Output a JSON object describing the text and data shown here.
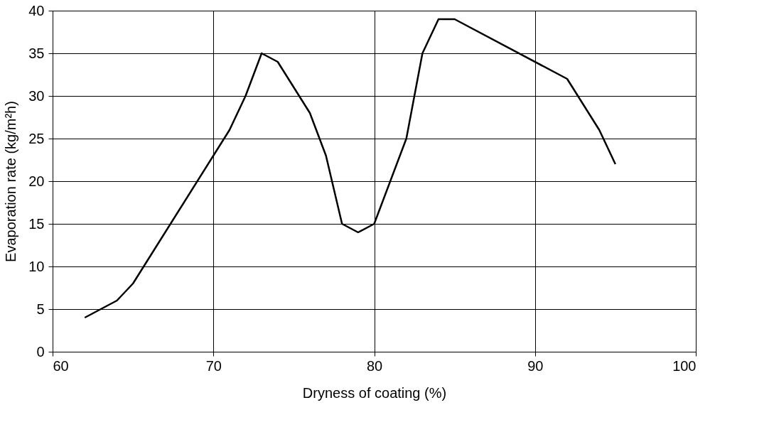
{
  "chart_data": {
    "type": "line",
    "xlabel": "Dryness of coating (%)",
    "ylabel": "Evaporation rate (kg/m²h)",
    "x": [
      62,
      64,
      65,
      71,
      72,
      73,
      74,
      76,
      77,
      78,
      79,
      80,
      82,
      83,
      84,
      85,
      92,
      94,
      95
    ],
    "series": [
      {
        "color": "#000000",
        "values": [
          4,
          6,
          8,
          26,
          30,
          35,
          34,
          28,
          23,
          15,
          14,
          15,
          25,
          35,
          39,
          39,
          32,
          26,
          22
        ]
      }
    ],
    "xlim": [
      60,
      100
    ],
    "xticks": [
      60,
      70,
      80,
      90,
      100
    ],
    "ylim": [
      0,
      40
    ],
    "yticks": [
      0,
      5,
      10,
      15,
      20,
      25,
      30,
      35,
      40
    ],
    "grid": true,
    "legend": false,
    "marker": "none",
    "line_style": "solid"
  }
}
